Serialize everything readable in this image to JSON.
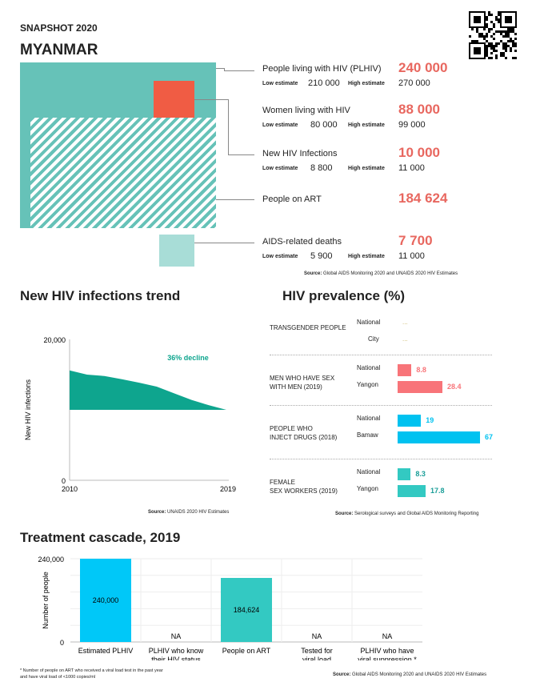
{
  "header": {
    "snapshot": "SNAPSHOT 2020",
    "country": "MYANMAR"
  },
  "colors": {
    "teal": "#66c2b8",
    "red": "#f05c44",
    "light_teal": "#a8ddd7",
    "value_red": "#e8675f",
    "msm": "#f87479",
    "pwid": "#00c2f0",
    "fsw": "#33c9c2",
    "trend": "#0ea58e"
  },
  "stats": [
    {
      "label": "People living with HIV (PLHIV)",
      "value": "240 000",
      "low_label": "Low estimate",
      "low": "210 000",
      "high_label": "High estimate",
      "high": "270 000"
    },
    {
      "label": "Women living with HIV",
      "value": "88 000",
      "low_label": "Low estimate",
      "low": "80 000",
      "high_label": "High estimate",
      "high": "99 000"
    },
    {
      "label": "New HIV Infections",
      "value": "10 000",
      "low_label": "Low estimate",
      "low": "8 800",
      "high_label": "High estimate",
      "high": "11 000"
    },
    {
      "label": "People on ART",
      "value": "184 624"
    },
    {
      "label": "AIDS-related deaths",
      "value": "7 700",
      "low_label": "Low estimate",
      "low": "5 900",
      "high_label": "High estimate",
      "high": "11 000"
    }
  ],
  "stats_source": {
    "bold": "Source:",
    "text": " Global AIDS Monitoring 2020 and UNAIDS 2020 HIV Estimates"
  },
  "chart_data": [
    {
      "type": "area",
      "title": "New HIV infections trend",
      "ylabel": "New HIV infections",
      "x": [
        2010,
        2011,
        2012,
        2013,
        2014,
        2015,
        2016,
        2017,
        2018,
        2019
      ],
      "series": [
        {
          "values": [
            15600,
            15000,
            14800,
            14350,
            13850,
            13300,
            12350,
            11400,
            10650,
            10000
          ]
        }
      ],
      "baseline": 10000,
      "ylim": [
        0,
        20000
      ],
      "yticks": [
        "0",
        "20,000"
      ],
      "xticks": [
        "2010",
        "2019"
      ],
      "annotation": "36% decline",
      "source": {
        "bold": "Source:",
        "text": " UNAIDS 2020 HIV Estimates"
      }
    },
    {
      "type": "bar",
      "title": "HIV prevalence (%)",
      "orientation": "horizontal",
      "groups": [
        {
          "name": "TRANSGENDER PEOPLE",
          "color": "#c8b560",
          "items": [
            {
              "label": "National",
              "value": null,
              "text": "..."
            },
            {
              "label": "City",
              "value": null,
              "text": "..."
            }
          ]
        },
        {
          "name": "MEN WHO HAVE SEX\nWITH MEN (2019)",
          "color": "#f87479",
          "items": [
            {
              "label": "National",
              "value": 8.8,
              "text": "8.8"
            },
            {
              "label": "Yangon",
              "value": 28.4,
              "text": "28.4"
            }
          ]
        },
        {
          "name": "PEOPLE WHO\nINJECT DRUGS (2018)",
          "color": "#00c2f0",
          "items": [
            {
              "label": "National",
              "value": 19,
              "text": "19"
            },
            {
              "label": "Bamaw",
              "value": 67,
              "text": "67"
            }
          ]
        },
        {
          "name": "FEMALE\nSEX WORKERS (2019)",
          "color": "#33c9c2",
          "items": [
            {
              "label": "National",
              "value": 8.3,
              "text": "8.3"
            },
            {
              "label": "Yangon",
              "value": 17.8,
              "text": "17.8"
            }
          ]
        }
      ],
      "source": {
        "bold": "Source:",
        "text": " Serological surveys and Global AIDS Monitoring Reporting"
      }
    },
    {
      "type": "bar",
      "title": "Treatment cascade, 2019",
      "ylabel": "Number of people",
      "ylim": [
        0,
        240000
      ],
      "yticks": [
        "0",
        "240,000"
      ],
      "categories": [
        "Estimated PLHIV",
        "PLHIV who know\ntheir HIV status",
        "People on ART",
        "Tested for\nviral load",
        "PLHIV who have\nviral suppression *"
      ],
      "values": [
        240000,
        null,
        184624,
        null,
        null
      ],
      "labels": [
        "240,000",
        "NA",
        "184,624",
        "NA",
        "NA"
      ],
      "colors": [
        "#00c8f8",
        "",
        "#33c9c2",
        "",
        ""
      ],
      "footnote": "* Number of people on ART who received a viral load test in the past year\nand have viral load of <1000 copies/ml",
      "source": {
        "bold": "Source:",
        "text": " Global AIDS Monitoring 2020 and UNAIDS 2020 HIV Estimates"
      }
    }
  ]
}
